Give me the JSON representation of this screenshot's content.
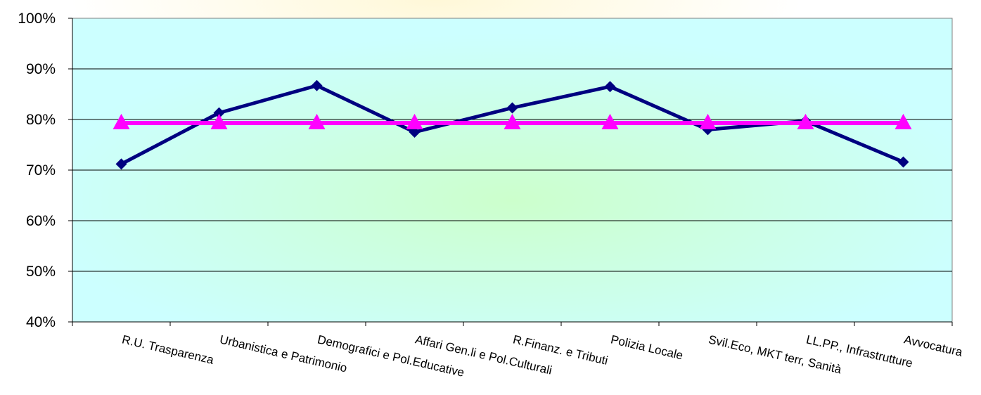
{
  "chart_data": {
    "type": "line",
    "categories": [
      "R.U. Trasparenza",
      "Urbanistica e Patrimonio",
      "Demografici e Pol.Educative",
      "Affari Gen.li e Pol.Culturali",
      "R.Finanz. e Tributi",
      "Polizia Locale",
      "Svil.Eco, MKT terr, Sanità",
      "LL.PP., Infrastrutture",
      "Avvocatura"
    ],
    "y_ticks": [
      "40%",
      "50%",
      "60%",
      "70%",
      "80%",
      "90%",
      "100%"
    ],
    "ylim": [
      0.4,
      1.0
    ],
    "grid": true,
    "series": [
      {
        "marker": "diamond",
        "color": "#000080",
        "values": [
          0.712,
          0.813,
          0.867,
          0.775,
          0.823,
          0.865,
          0.78,
          0.797,
          0.716
        ]
      },
      {
        "marker": "triangle",
        "color": "#ff00ff",
        "values": [
          0.793,
          0.793,
          0.793,
          0.793,
          0.793,
          0.793,
          0.793,
          0.793,
          0.793
        ]
      }
    ],
    "plot_area_color": "#ccffff",
    "plot_center_color": "#ccffcc"
  }
}
